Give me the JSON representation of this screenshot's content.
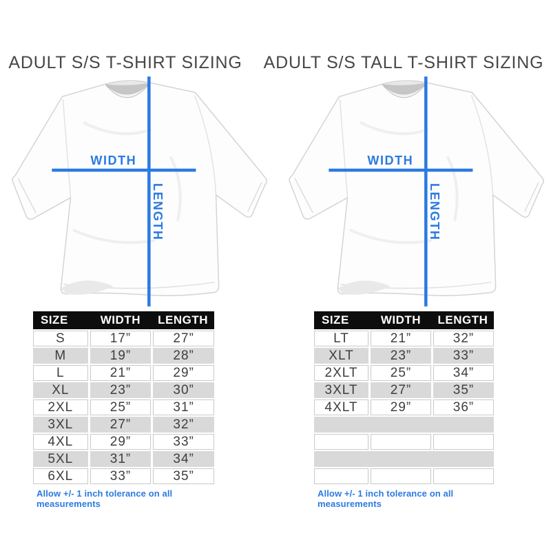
{
  "colors": {
    "accent_blue": "#2b7ae2",
    "table_header_bg": "#0d0d0d",
    "table_header_text": "#ffffff",
    "row_alt_gray": "#d9d9d9",
    "cell_border": "#c9c9c9",
    "title_text": "#474747",
    "cell_text": "#3e3e3e"
  },
  "panels": [
    {
      "title": "ADULT S/S T-SHIRT SIZING",
      "diagram": {
        "width_label": "WIDTH",
        "length_label": "LENGTH"
      },
      "table": {
        "headers": [
          "SIZE",
          "WIDTH",
          "LENGTH"
        ],
        "rows": [
          [
            "S",
            "17”",
            "27”"
          ],
          [
            "M",
            "19”",
            "28”"
          ],
          [
            "L",
            "21”",
            "29”"
          ],
          [
            "XL",
            "23”",
            "30”"
          ],
          [
            "2XL",
            "25”",
            "31”"
          ],
          [
            "3XL",
            "27”",
            "32”"
          ],
          [
            "4XL",
            "29”",
            "33”"
          ],
          [
            "5XL",
            "31”",
            "34”"
          ],
          [
            "6XL",
            "33”",
            "35”"
          ]
        ],
        "empty_rows": 0
      },
      "note": "Allow +/- 1 inch tolerance on all measurements"
    },
    {
      "title": "ADULT S/S TALL T-SHIRT SIZING",
      "diagram": {
        "width_label": "WIDTH",
        "length_label": "LENGTH"
      },
      "table": {
        "headers": [
          "SIZE",
          "WIDTH",
          "LENGTH"
        ],
        "rows": [
          [
            "LT",
            "21”",
            "32”"
          ],
          [
            "XLT",
            "23”",
            "33”"
          ],
          [
            "2XLT",
            "25”",
            "34”"
          ],
          [
            "3XLT",
            "27”",
            "35”"
          ],
          [
            "4XLT",
            "29”",
            "36”"
          ]
        ],
        "empty_rows": 4
      },
      "note": "Allow +/- 1 inch tolerance on all measurements"
    }
  ]
}
